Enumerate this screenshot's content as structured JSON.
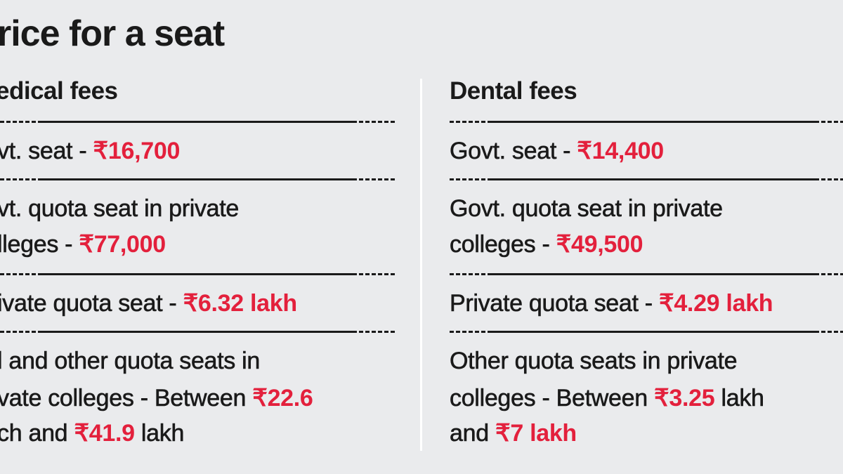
{
  "title": "rice for a seat",
  "medical": {
    "heading": "edical fees",
    "rows": [
      {
        "lines": [
          {
            "text": "vt. seat - ",
            "value": "₹16,700"
          }
        ]
      },
      {
        "lines": [
          {
            "text": "vt. quota seat in private"
          },
          {
            "text": "lleges - ",
            "value": "₹77,000"
          }
        ]
      },
      {
        "lines": [
          {
            "text": "ivate quota seat - ",
            "value": "₹6.32 lakh"
          }
        ]
      },
      {
        "lines": [
          {
            "text": "l and other quota seats in"
          },
          {
            "text": "vate colleges - Between ",
            "value": "₹22.6"
          },
          {
            "text": "ch and ",
            "value": "₹41.9",
            "after": " lakh"
          }
        ]
      }
    ]
  },
  "dental": {
    "heading": "Dental fees",
    "rows": [
      {
        "lines": [
          {
            "text": "Govt. seat - ",
            "value": "₹14,400"
          }
        ]
      },
      {
        "lines": [
          {
            "text": "Govt. quota seat in private"
          },
          {
            "text": "colleges - ",
            "value": "₹49,500"
          }
        ]
      },
      {
        "lines": [
          {
            "text": "Private quota seat - ",
            "value": "₹4.29 lakh"
          }
        ]
      },
      {
        "lines": [
          {
            "text": "Other quota seats in private"
          },
          {
            "text": "colleges - Between ",
            "value": "₹3.25",
            "after": " lakh"
          },
          {
            "text": "and ",
            "value": "₹7 lakh"
          }
        ]
      }
    ]
  }
}
